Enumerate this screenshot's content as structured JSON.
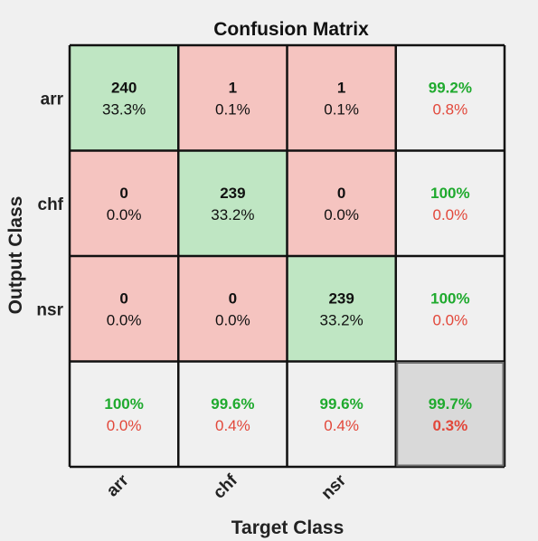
{
  "chart_data": {
    "type": "heatmap",
    "title": "Confusion Matrix",
    "xlabel": "Target Class",
    "ylabel": "Output Class",
    "classes": [
      "arr",
      "chf",
      "nsr"
    ],
    "matrix": {
      "rows": [
        [
          {
            "count": "240",
            "pct": "33.3%"
          },
          {
            "count": "1",
            "pct": "0.1%"
          },
          {
            "count": "1",
            "pct": "0.1%"
          }
        ],
        [
          {
            "count": "0",
            "pct": "0.0%"
          },
          {
            "count": "239",
            "pct": "33.2%"
          },
          {
            "count": "0",
            "pct": "0.0%"
          }
        ],
        [
          {
            "count": "0",
            "pct": "0.0%"
          },
          {
            "count": "0",
            "pct": "0.0%"
          },
          {
            "count": "239",
            "pct": "33.2%"
          }
        ]
      ]
    },
    "row_summary": [
      {
        "correct": "99.2%",
        "wrong": "0.8%"
      },
      {
        "correct": "100%",
        "wrong": "0.0%"
      },
      {
        "correct": "100%",
        "wrong": "0.0%"
      }
    ],
    "col_summary": [
      {
        "correct": "100%",
        "wrong": "0.0%"
      },
      {
        "correct": "99.6%",
        "wrong": "0.4%"
      },
      {
        "correct": "99.6%",
        "wrong": "0.4%"
      }
    ],
    "overall": {
      "correct": "99.7%",
      "wrong": "0.3%"
    },
    "colors": {
      "diagonal": "#bfe6c3",
      "off_diagonal": "#f5c4c0",
      "summary": "#f0f0f0",
      "overall": "#d9d9d9",
      "green_text": "#1faa2e",
      "red_text": "#e2473a",
      "background": "#f0f0f0"
    }
  }
}
